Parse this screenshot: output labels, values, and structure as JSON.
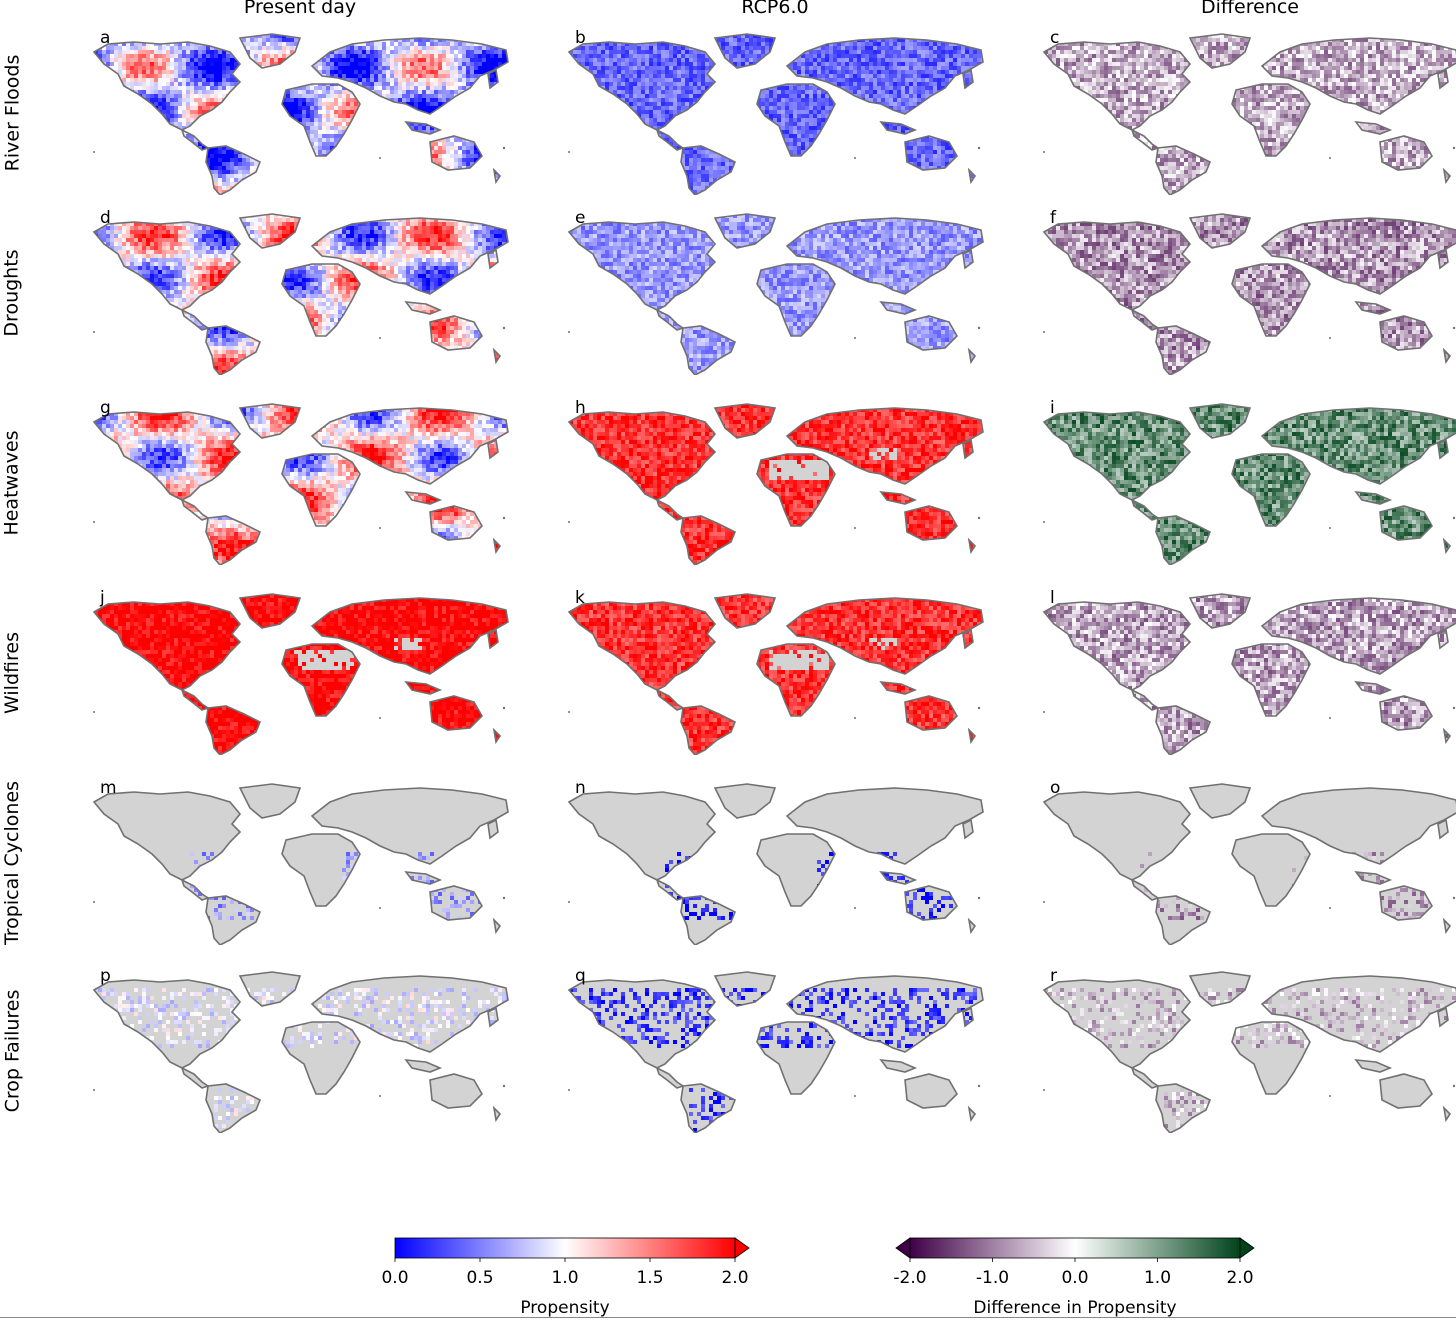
{
  "columns": [
    {
      "id": "present",
      "title": "Present day",
      "palette": "propensity",
      "mode": "present"
    },
    {
      "id": "future",
      "title": "RCP6.0",
      "palette": "propensity",
      "mode": "future"
    },
    {
      "id": "difference",
      "title": "Difference",
      "palette": "difference",
      "mode": "diff"
    }
  ],
  "rows": [
    {
      "label": "River Floods",
      "letters": [
        "a",
        "b",
        "c"
      ],
      "present": [
        0.75,
        "mixed"
      ],
      "future": [
        0.4,
        "blue"
      ],
      "diff": [
        -0.6,
        "purple"
      ]
    },
    {
      "label": "Droughts",
      "letters": [
        "d",
        "e",
        "f"
      ],
      "present": [
        1.0,
        "mixed"
      ],
      "future": [
        0.6,
        "blue"
      ],
      "diff": [
        -0.8,
        "purple"
      ]
    },
    {
      "label": "Heatwaves",
      "letters": [
        "g",
        "h",
        "i"
      ],
      "present": [
        1.1,
        "mixed"
      ],
      "future": [
        1.8,
        "red"
      ],
      "diff": [
        1.2,
        "green"
      ]
    },
    {
      "label": "Wildfires",
      "letters": [
        "j",
        "k",
        "l"
      ],
      "present": [
        2.0,
        "red"
      ],
      "future": [
        1.8,
        "red"
      ],
      "diff": [
        -0.7,
        "purple"
      ]
    },
    {
      "label": "Tropical Cyclones",
      "letters": [
        "m",
        "n",
        "o"
      ],
      "present": [
        0.6,
        "coastal"
      ],
      "future": [
        0.1,
        "coastal"
      ],
      "diff": [
        -0.8,
        "coastal"
      ]
    },
    {
      "label": "Crop Failures",
      "letters": [
        "p",
        "q",
        "r"
      ],
      "present": [
        0.9,
        "sparse"
      ],
      "future": [
        0.2,
        "sparse"
      ],
      "diff": [
        -0.5,
        "sparse"
      ]
    }
  ],
  "colorbars": [
    {
      "id": "propensity",
      "title": "Propensity",
      "ticks": [
        "0.0",
        "0.5",
        "1.0",
        "1.5",
        "2.0"
      ],
      "range": [
        0.0,
        2.0
      ],
      "extend": "max",
      "stops": [
        "#0000ff",
        "#ffffff",
        "#ff0000"
      ]
    },
    {
      "id": "difference",
      "title": "Difference in Propensity",
      "ticks": [
        "-2.0",
        "-1.0",
        "0.0",
        "1.0",
        "2.0"
      ],
      "range": [
        -2.0,
        2.0
      ],
      "extend": "both",
      "stops": [
        "#3f0047",
        "#ffffff",
        "#00441b"
      ]
    }
  ],
  "colors": {
    "land": "#d3d3d3",
    "coast": "#707070",
    "ocean": "#ffffff"
  }
}
